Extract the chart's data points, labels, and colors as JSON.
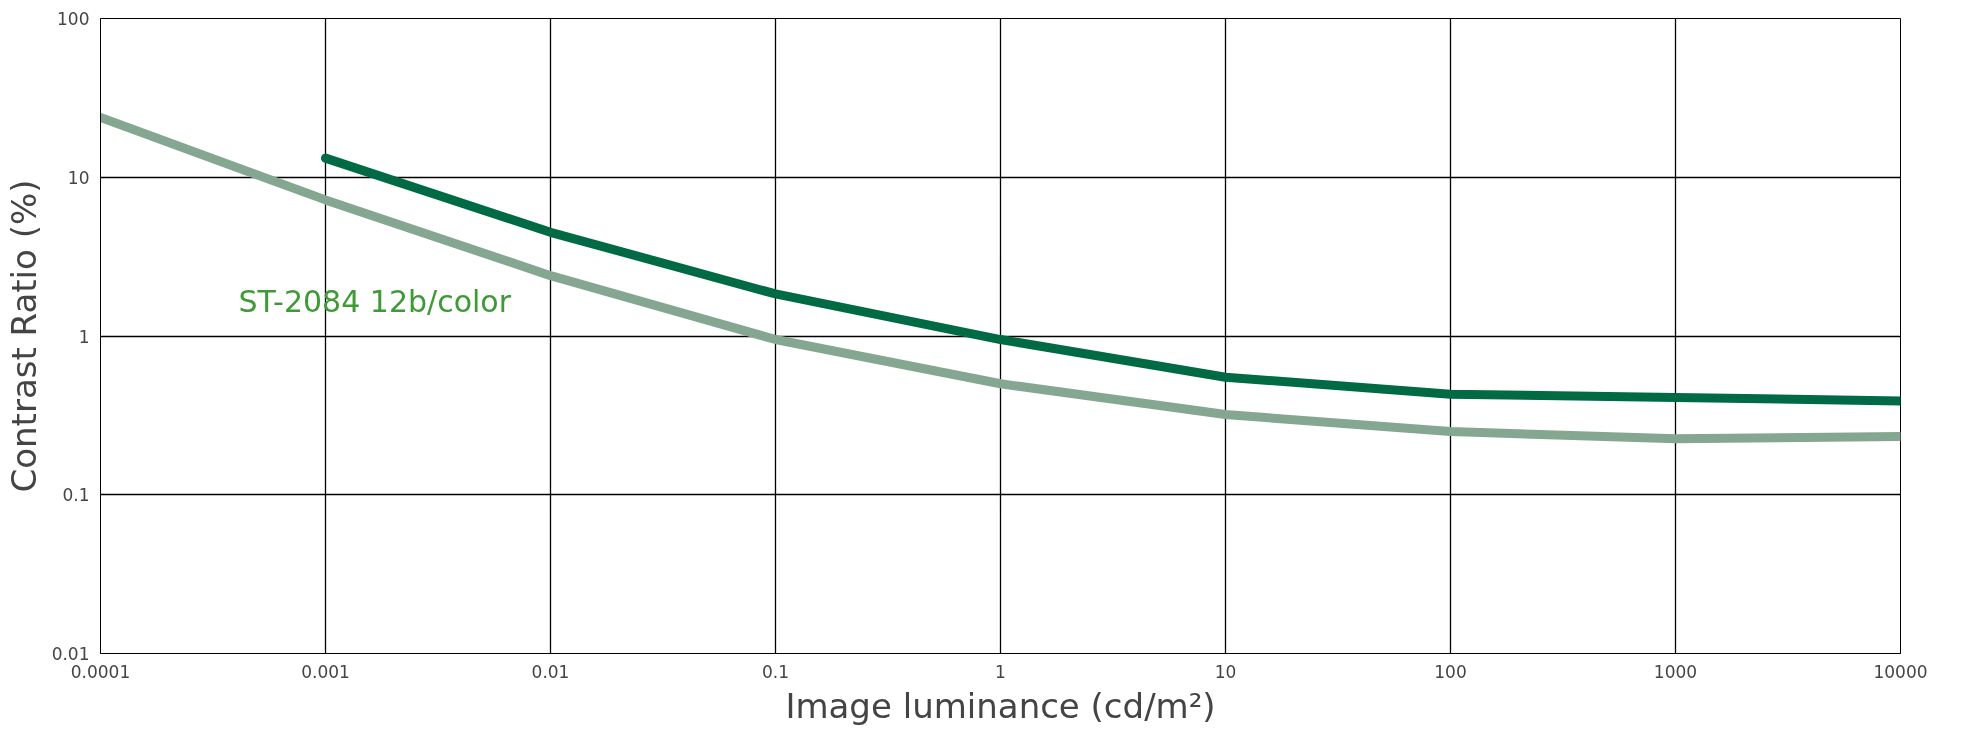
{
  "chart_data": {
    "type": "line",
    "xlabel": "Image luminance (cd/m²)",
    "ylabel": "Contrast Ratio (%)",
    "log": "xy",
    "grid": true,
    "line_style": "solid",
    "marker": "none",
    "xlim": [
      0.0001,
      10000
    ],
    "xticks": [
      0.0001,
      0.001,
      0.01,
      0.1,
      1,
      10,
      100,
      1000,
      10000
    ],
    "ylim": [
      0.01,
      100
    ],
    "yticks": [
      0.01,
      0.1,
      1,
      10,
      100
    ],
    "x": [
      0.0001,
      0.001,
      0.01,
      0.1,
      1,
      10,
      100,
      1000,
      10000
    ],
    "series": [
      {
        "color": "#006a45",
        "values": [
          null,
          13.2,
          4.5,
          1.84,
          0.95,
          0.55,
          0.43,
          0.41,
          0.39
        ]
      },
      {
        "color": "#85a792",
        "values": [
          23.8,
          7.2,
          2.4,
          0.95,
          0.5,
          0.32,
          0.25,
          0.225,
          0.233
        ]
      }
    ],
    "annotations": [
      "ST-2084 12b/color"
    ]
  }
}
